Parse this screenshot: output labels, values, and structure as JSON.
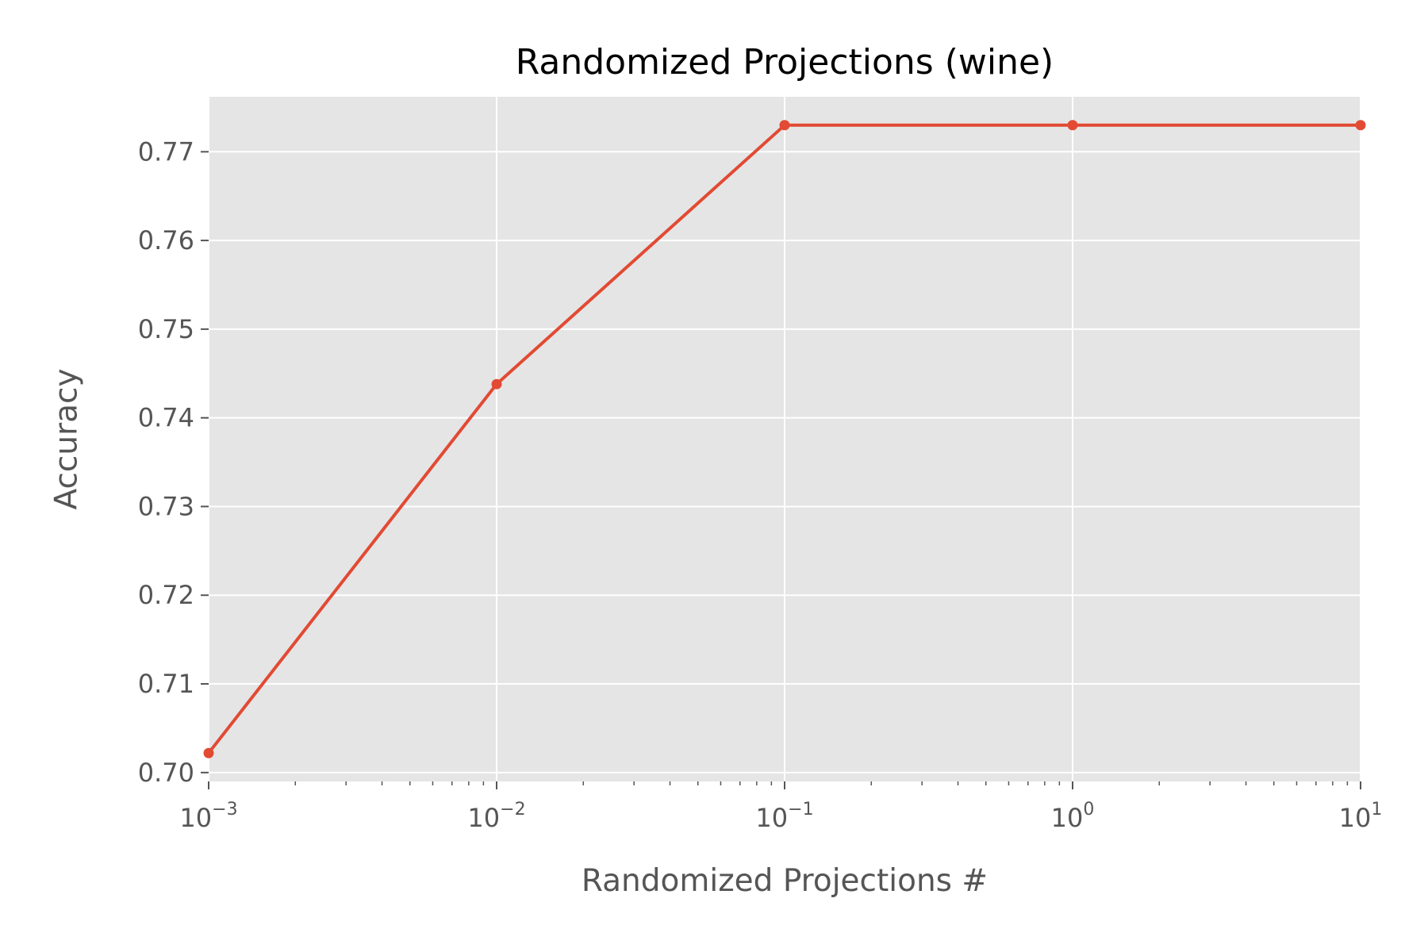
{
  "chart_data": {
    "type": "line",
    "title": "Randomized Projections (wine)",
    "xlabel": "Randomized Projections #",
    "ylabel": "Accuracy",
    "x_scale": "log",
    "xlim": [
      0.001,
      10
    ],
    "ylim": [
      0.699,
      0.7762
    ],
    "x_ticks": [
      {
        "value": 0.001,
        "base": "10",
        "exp": "−3"
      },
      {
        "value": 0.01,
        "base": "10",
        "exp": "−2"
      },
      {
        "value": 0.1,
        "base": "10",
        "exp": "−1"
      },
      {
        "value": 1,
        "base": "10",
        "exp": "0"
      },
      {
        "value": 10,
        "base": "10",
        "exp": "1"
      }
    ],
    "y_ticks": [
      {
        "value": 0.7,
        "label": "0.70"
      },
      {
        "value": 0.71,
        "label": "0.71"
      },
      {
        "value": 0.72,
        "label": "0.72"
      },
      {
        "value": 0.73,
        "label": "0.73"
      },
      {
        "value": 0.74,
        "label": "0.74"
      },
      {
        "value": 0.75,
        "label": "0.75"
      },
      {
        "value": 0.76,
        "label": "0.76"
      },
      {
        "value": 0.77,
        "label": "0.77"
      }
    ],
    "grid": true,
    "legend": "none",
    "series": [
      {
        "x": [
          0.001,
          0.01,
          0.1,
          1,
          10
        ],
        "y": [
          0.7022,
          0.7438,
          0.773,
          0.773,
          0.773
        ],
        "color": "#E24A33",
        "marker": "circle"
      }
    ],
    "style": {
      "plot_bg": "#E5E5E5",
      "grid_color": "#FFFFFF",
      "tick_color": "#555555",
      "title_color": "#000000"
    }
  }
}
